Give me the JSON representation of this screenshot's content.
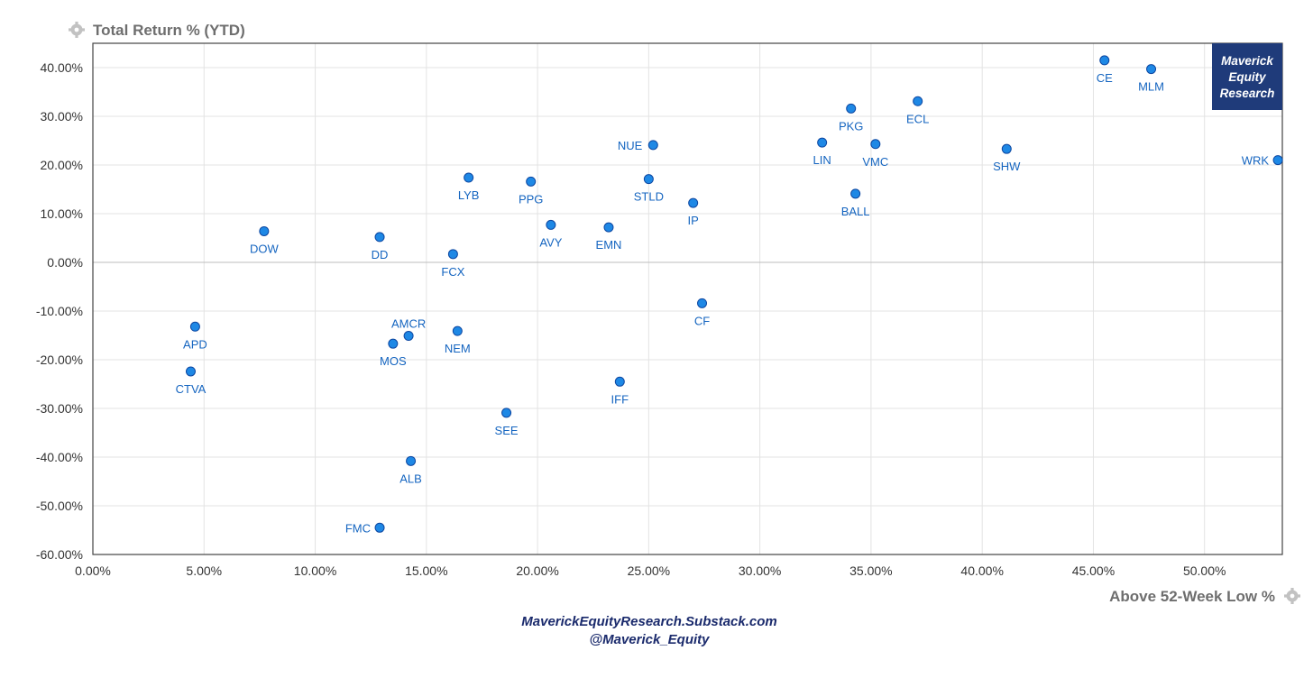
{
  "chart_data": {
    "type": "scatter",
    "ylabel": "Total Return % (YTD)",
    "xlabel": "Above 52-Week Low %",
    "xlim": [
      0,
      53.5
    ],
    "ylim": [
      -60,
      45
    ],
    "x_ticks": [
      0,
      5,
      10,
      15,
      20,
      25,
      30,
      35,
      40,
      45,
      50
    ],
    "y_ticks": [
      40,
      30,
      20,
      10,
      0,
      -10,
      -20,
      -30,
      -40,
      -50,
      -60
    ],
    "x_tick_labels": [
      "0.00%",
      "5.00%",
      "10.00%",
      "15.00%",
      "20.00%",
      "25.00%",
      "30.00%",
      "35.00%",
      "40.00%",
      "45.00%",
      "50.00%"
    ],
    "y_tick_labels": [
      "40.00%",
      "30.00%",
      "20.00%",
      "10.00%",
      "0.00%",
      "-10.00%",
      "-20.00%",
      "-30.00%",
      "-40.00%",
      "-50.00%",
      "-60.00%"
    ],
    "grid": true,
    "points": [
      {
        "label": "CE",
        "x": 45.5,
        "y": 41.5
      },
      {
        "label": "MLM",
        "x": 47.6,
        "y": 39.7
      },
      {
        "label": "ECL",
        "x": 37.1,
        "y": 33.1
      },
      {
        "label": "PKG",
        "x": 34.1,
        "y": 31.6
      },
      {
        "label": "LIN",
        "x": 32.8,
        "y": 24.6
      },
      {
        "label": "VMC",
        "x": 35.2,
        "y": 24.3
      },
      {
        "label": "NUE",
        "x": 25.2,
        "y": 24.1
      },
      {
        "label": "SHW",
        "x": 41.1,
        "y": 23.3
      },
      {
        "label": "WRK",
        "x": 53.3,
        "y": 21.0
      },
      {
        "label": "LYB",
        "x": 16.9,
        "y": 17.4
      },
      {
        "label": "STLD",
        "x": 25.0,
        "y": 17.1
      },
      {
        "label": "PPG",
        "x": 19.7,
        "y": 16.6
      },
      {
        "label": "BALL",
        "x": 34.3,
        "y": 14.1
      },
      {
        "label": "IP",
        "x": 27.0,
        "y": 12.2
      },
      {
        "label": "AVY",
        "x": 20.6,
        "y": 7.7
      },
      {
        "label": "EMN",
        "x": 23.2,
        "y": 7.2
      },
      {
        "label": "DOW",
        "x": 7.7,
        "y": 6.4
      },
      {
        "label": "DD",
        "x": 12.9,
        "y": 5.2
      },
      {
        "label": "FCX",
        "x": 16.2,
        "y": 1.7
      },
      {
        "label": "CF",
        "x": 27.4,
        "y": -8.4
      },
      {
        "label": "APD",
        "x": 4.6,
        "y": -13.2
      },
      {
        "label": "NEM",
        "x": 16.4,
        "y": -14.1
      },
      {
        "label": "AMCR",
        "x": 14.2,
        "y": -15.1
      },
      {
        "label": "MOS",
        "x": 13.5,
        "y": -16.7
      },
      {
        "label": "CTVA",
        "x": 4.4,
        "y": -22.4
      },
      {
        "label": "IFF",
        "x": 23.7,
        "y": -24.5
      },
      {
        "label": "SEE",
        "x": 18.6,
        "y": -30.9
      },
      {
        "label": "ALB",
        "x": 14.3,
        "y": -40.8
      },
      {
        "label": "FMC",
        "x": 12.9,
        "y": -54.5
      }
    ]
  },
  "brand": {
    "lines": [
      "Maverick",
      "Equity",
      "Research"
    ]
  },
  "footer": {
    "site": "MaverickEquityResearch.Substack.com",
    "handle": "@Maverick_Equity"
  },
  "icons": {
    "axis_settings": "gear-icon"
  },
  "colors": {
    "point": "#1e88e5",
    "label": "#1565c0",
    "brand_box": "#1f3b7a"
  }
}
